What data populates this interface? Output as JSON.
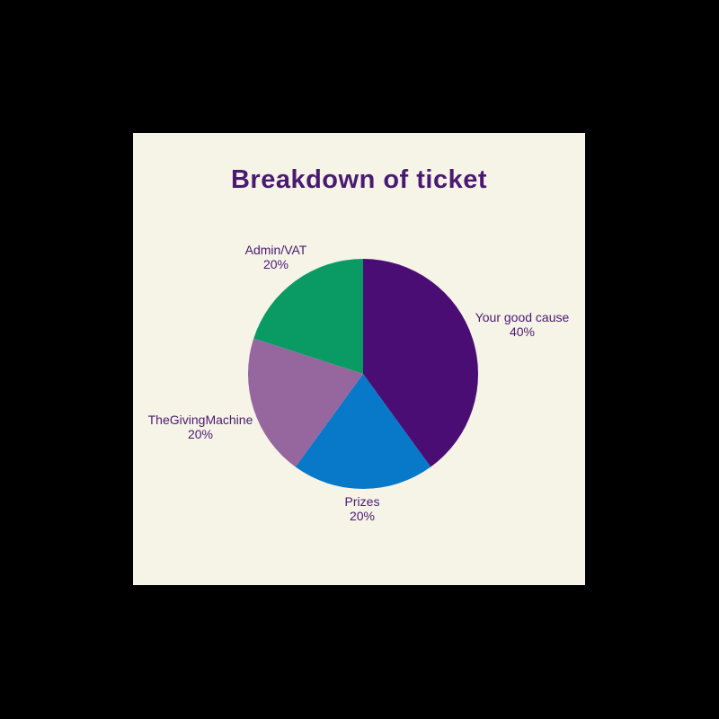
{
  "page": {
    "background_color": "#000000",
    "card_background_color": "#F6F3E7",
    "text_color": "#4A1A72"
  },
  "chart_data": {
    "type": "pie",
    "title": "Breakdown of ticket",
    "start_angle_deg": 0,
    "direction": "clockwise",
    "legend": "none",
    "slices": [
      {
        "label": "Your good cause",
        "percent": 40,
        "percent_label": "40%",
        "color": "#4A0D73"
      },
      {
        "label": "Prizes",
        "percent": 20,
        "percent_label": "20%",
        "color": "#0878C8"
      },
      {
        "label": "TheGivingMachine",
        "percent": 20,
        "percent_label": "20%",
        "color": "#96679E"
      },
      {
        "label": "Admin/VAT",
        "percent": 20,
        "percent_label": "20%",
        "color": "#0A9B64"
      }
    ]
  }
}
